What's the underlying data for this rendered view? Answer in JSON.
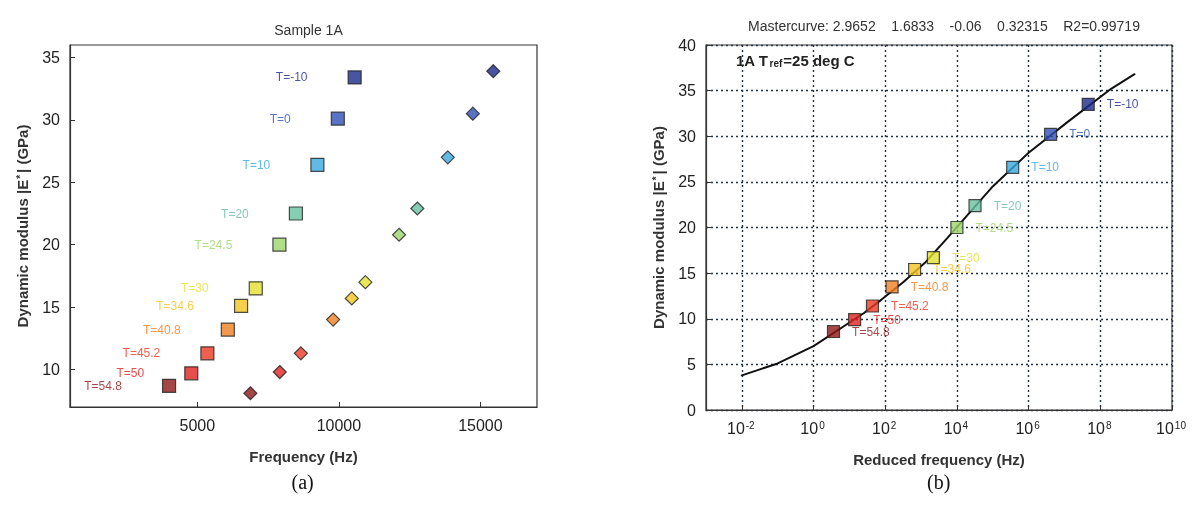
{
  "chart_data": [
    {
      "type": "scatter",
      "title": "Sample 1A",
      "xlabel": "Frequency (Hz)",
      "ylabel": "Dynamic modulus |E$^{*}$| (GPa)",
      "marker": "square",
      "xlim": [
        500,
        17000
      ],
      "xticks": [
        5000,
        10000,
        15000
      ],
      "ylim": [
        7,
        36
      ],
      "yticks": [
        10,
        15,
        20,
        25,
        30,
        35
      ],
      "annotations": [
        "(a)"
      ],
      "series": [
        {
          "name": "T=-10",
          "color": "#1c2a8c",
          "x": [
            10557
          ],
          "values": [
            33.4
          ]
        },
        {
          "name": "T=0",
          "color": "#2f4fb5",
          "x": [
            9962
          ],
          "values": [
            30.1
          ]
        },
        {
          "name": "T=10",
          "color": "#3aa8e0",
          "x": [
            9241
          ],
          "values": [
            26.4
          ]
        },
        {
          "name": "T=20",
          "color": "#66c0a0",
          "x": [
            8481
          ],
          "values": [
            22.5
          ]
        },
        {
          "name": "T=24.5",
          "color": "#9cd46a",
          "x": [
            7899
          ],
          "values": [
            20.0
          ]
        },
        {
          "name": "T=30",
          "color": "#e2e030",
          "x": [
            7063
          ],
          "values": [
            16.5
          ]
        },
        {
          "name": "T=34.6",
          "color": "#f2c420",
          "x": [
            6544
          ],
          "values": [
            15.1
          ]
        },
        {
          "name": "T=40.8",
          "color": "#f08020",
          "x": [
            6076
          ],
          "values": [
            13.2
          ]
        },
        {
          "name": "T=45.2",
          "color": "#ea3a22",
          "x": [
            5354
          ],
          "values": [
            11.3
          ]
        },
        {
          "name": "T=50",
          "color": "#e02020",
          "x": [
            4785
          ],
          "values": [
            9.7
          ]
        },
        {
          "name": "T=54.8",
          "color": "#8e1818",
          "x": [
            4000
          ],
          "values": [
            8.7
          ]
        },
        {
          "marker": "diamond",
          "colors": [
            "#1c2a8c",
            "#2f4fb5",
            "#3aa8e0",
            "#66c0a0",
            "#9cd46a",
            "#e2e030",
            "#f2c420",
            "#f08020",
            "#ea3a22",
            "#e02020",
            "#8e1818"
          ],
          "x": [
            15456,
            14734,
            13848,
            12772,
            12127,
            10937,
            10456,
            9797,
            8658,
            7911,
            6873
          ],
          "values": [
            33.9,
            30.5,
            27.0,
            22.9,
            20.8,
            17.0,
            15.7,
            14.0,
            11.3,
            9.8,
            8.1
          ]
        }
      ]
    },
    {
      "type": "scatter",
      "title": "Mastercurve: 2.9652    1.6833    -0.06    0.32315    R2=0.99719",
      "xlabel": "Reduced frequency (Hz)",
      "ylabel": "Dynamic modulus |E$^{*}$| (GPa)",
      "marker": "square",
      "log": "x",
      "grid": true,
      "xlim": [
        0.001,
        10000000000
      ],
      "xticks": [
        {
          "value": 0.01,
          "label": "10$^{-2}$"
        },
        {
          "value": 1,
          "label": "10$^{0}$"
        },
        {
          "value": 100,
          "label": "10$^{2}$"
        },
        {
          "value": 10000,
          "label": "10$^{4}$"
        },
        {
          "value": 1000000,
          "label": "10$^{6}$"
        },
        {
          "value": 100000000,
          "label": "10$^{8}$"
        },
        {
          "value": 10000000000,
          "label": "10$^{10}$"
        }
      ],
      "ylim": [
        0,
        40
      ],
      "yticks": [
        0,
        5,
        10,
        15,
        20,
        25,
        30,
        35,
        40
      ],
      "annotations": [
        "1A T$_{ref}$=25 deg C",
        "(b)"
      ],
      "series": [
        {
          "type": "line",
          "marker": "none",
          "color": "#111111",
          "x": [
            0.01,
            0.1,
            1,
            25,
            79,
            316,
            1260,
            5000,
            100000,
            1000000,
            12600000,
            200000000,
            900000000
          ],
          "values": [
            3.8,
            5.1,
            7.0,
            10.6,
            12.1,
            14.0,
            16.1,
            18.7,
            24.5,
            28.2,
            31.6,
            35.2,
            36.8
          ]
        },
        {
          "name": "T=-10",
          "color": "#1c2a8c",
          "x": [
            46000000
          ],
          "values": [
            33.5
          ]
        },
        {
          "name": "T=0",
          "color": "#2f4fb5",
          "x": [
            4100000
          ],
          "values": [
            30.2
          ]
        },
        {
          "name": "T=10",
          "color": "#3aa8e0",
          "x": [
            360000
          ],
          "values": [
            26.6
          ]
        },
        {
          "name": "T=20",
          "color": "#66c0a0",
          "x": [
            32000
          ],
          "values": [
            22.4
          ]
        },
        {
          "name": "T=24.5",
          "color": "#9cd46a",
          "x": [
            10000
          ],
          "values": [
            20.0
          ]
        },
        {
          "name": "T=30",
          "color": "#e2e030",
          "x": [
            2200
          ],
          "values": [
            16.7
          ]
        },
        {
          "name": "T=34.6",
          "color": "#f2c420",
          "x": [
            660
          ],
          "values": [
            15.4
          ]
        },
        {
          "name": "T=40.8",
          "color": "#f08020",
          "x": [
            155
          ],
          "values": [
            13.5
          ]
        },
        {
          "name": "T=45.2",
          "color": "#ea3a22",
          "x": [
            44
          ],
          "values": [
            11.4
          ]
        },
        {
          "name": "T=50",
          "color": "#e02020",
          "x": [
            14
          ],
          "values": [
            9.9
          ]
        },
        {
          "name": "T=54.8",
          "color": "#8e1818",
          "x": [
            3.6
          ],
          "values": [
            8.6
          ]
        }
      ]
    }
  ]
}
